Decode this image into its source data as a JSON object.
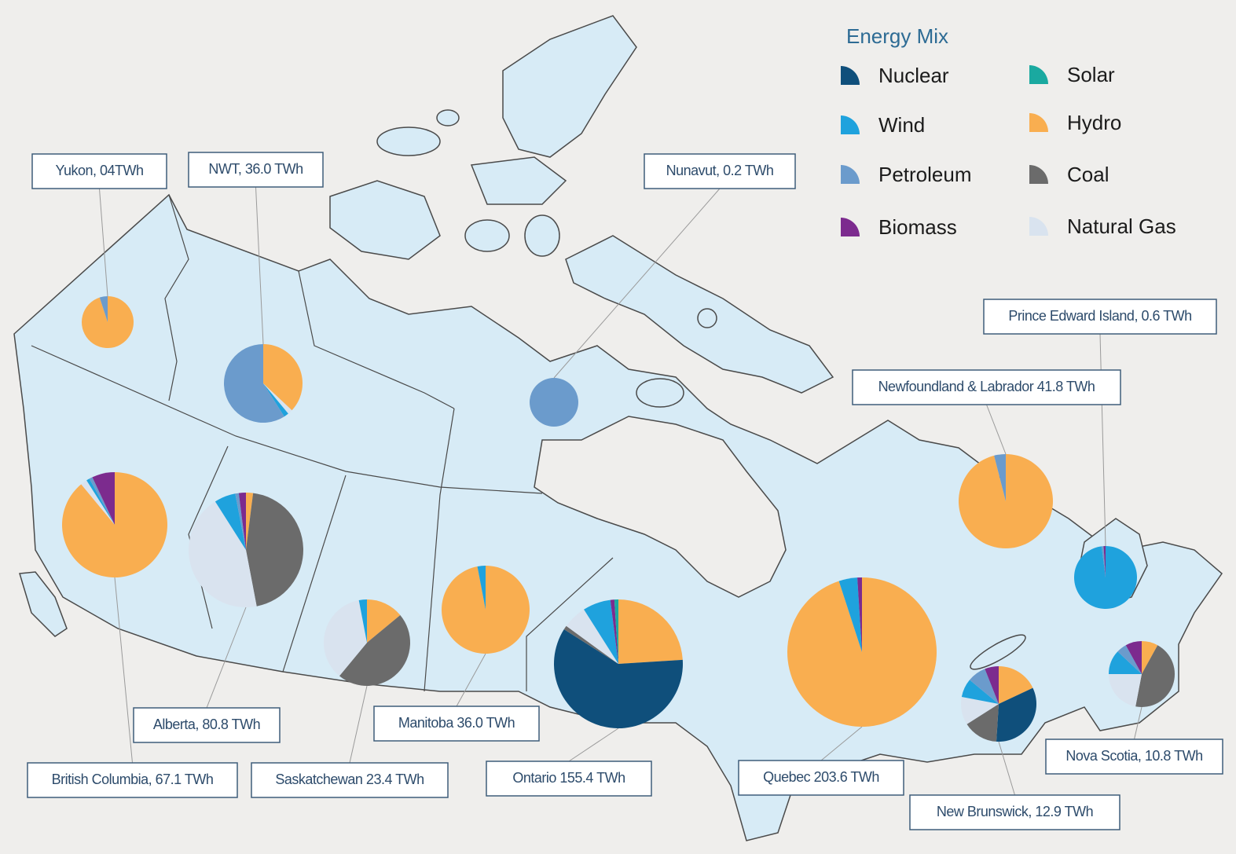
{
  "legend": {
    "title": "Energy Mix",
    "items": [
      {
        "label": "Nuclear",
        "color": "#0f4f7b"
      },
      {
        "label": "Wind",
        "color": "#1fa2dd"
      },
      {
        "label": "Petroleum",
        "color": "#6b9bcc"
      },
      {
        "label": "Biomass",
        "color": "#7c2b8e"
      },
      {
        "label": "Solar",
        "color": "#1aa9a0"
      },
      {
        "label": "Hydro",
        "color": "#f9ae50"
      },
      {
        "label": "Coal",
        "color": "#6b6b6b"
      },
      {
        "label": "Natural Gas",
        "color": "#d9e3ef"
      }
    ]
  },
  "provinces": [
    {
      "label": "Yukon, 04TWh",
      "shares": [
        0,
        0,
        5,
        0,
        0,
        95,
        0,
        0
      ]
    },
    {
      "label": "NWT, 36.0 TWh",
      "shares": [
        0,
        2,
        59,
        0,
        0,
        37,
        0,
        2
      ]
    },
    {
      "label": "Nunavut, 0.2 TWh",
      "shares": [
        0,
        0,
        100,
        0,
        0,
        0,
        0,
        0
      ]
    },
    {
      "label": "Prince Edward Island, 0.6 TWh",
      "shares": [
        0,
        98,
        1,
        1,
        0,
        0,
        0,
        0
      ]
    },
    {
      "label": "Newfoundland & Labrador 41.8 TWh",
      "shares": [
        0,
        0,
        4,
        0,
        0,
        96,
        0,
        0
      ]
    },
    {
      "label": "Alberta, 80.8 TWh",
      "shares": [
        0,
        6,
        1,
        2,
        0,
        2,
        45,
        44
      ]
    },
    {
      "label": "British Columbia, 67.1 TWh",
      "shares": [
        0,
        1,
        1,
        7,
        0,
        89,
        0,
        2
      ]
    },
    {
      "label": "Saskatchewan 23.4 TWh",
      "shares": [
        0,
        3,
        0,
        0,
        0,
        14,
        47,
        36
      ]
    },
    {
      "label": "Manitoba 36.0 TWh",
      "shares": [
        0,
        3,
        0,
        0,
        0,
        97,
        0,
        0
      ]
    },
    {
      "label": "Ontario 155.4 TWh",
      "shares": [
        60,
        7,
        0,
        1,
        1,
        24,
        1,
        6
      ]
    },
    {
      "label": "Quebec 203.6 TWh",
      "shares": [
        0,
        4,
        0,
        1,
        0,
        95,
        0,
        0
      ]
    },
    {
      "label": "Nova Scotia, 10.8 TWh",
      "shares": [
        0,
        12,
        5,
        8,
        0,
        8,
        45,
        22
      ]
    },
    {
      "label": "New Brunswick, 12.9 TWh",
      "shares": [
        33,
        8,
        8,
        6,
        0,
        18,
        15,
        12
      ]
    }
  ]
}
